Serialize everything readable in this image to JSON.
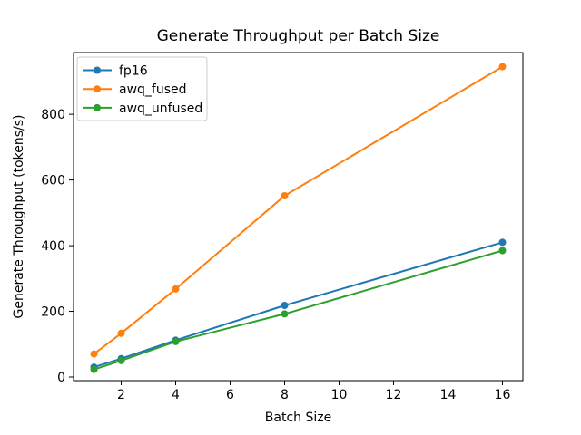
{
  "figure": {
    "background_color": "#ffffff"
  },
  "chart_data": {
    "type": "line",
    "title": "Generate Throughput per Batch Size",
    "xlabel": "Batch Size",
    "ylabel": "Generate Throughput (tokens/s)",
    "x": [
      1,
      2,
      4,
      8,
      16
    ],
    "series": [
      {
        "name": "fp16",
        "color": "#1f77b4",
        "values": [
          30,
          56,
          112,
          218,
          410
        ]
      },
      {
        "name": "awq_fused",
        "color": "#ff7f0e",
        "values": [
          70,
          133,
          268,
          552,
          945
        ]
      },
      {
        "name": "awq_unfused",
        "color": "#2ca02c",
        "values": [
          23,
          50,
          108,
          192,
          385
        ]
      }
    ],
    "xticks": [
      2,
      4,
      6,
      8,
      10,
      12,
      14,
      16
    ],
    "yticks": [
      0,
      200,
      400,
      600,
      800
    ],
    "xlim": [
      0.25,
      16.75
    ],
    "ylim": [
      -11,
      988
    ],
    "marker": "circle",
    "grid": false,
    "legend_position": "upper left",
    "axis_color": "#000000",
    "text_color": "#000000",
    "legend_border_color": "#cccccc"
  }
}
